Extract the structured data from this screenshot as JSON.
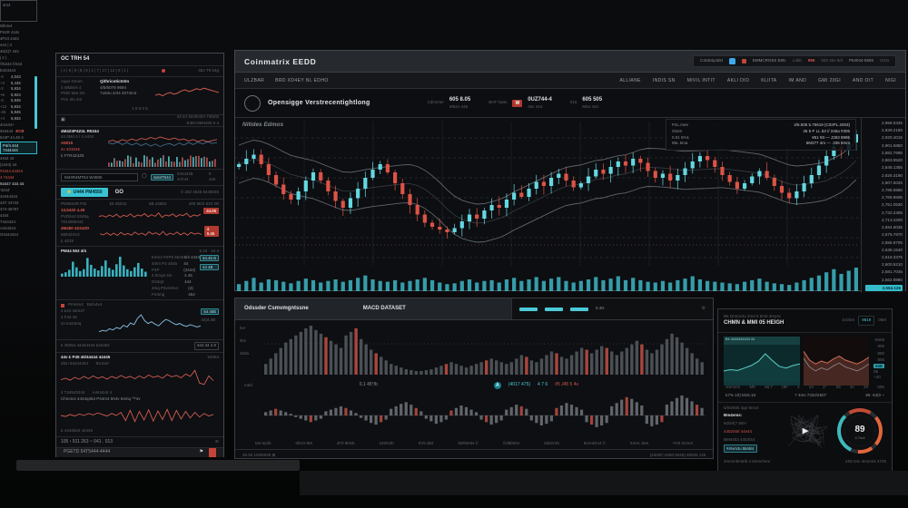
{
  "palette": {
    "bg": "#0b0c0e",
    "panel": "#0e1013",
    "cyan": "#4cc9d8",
    "red": "#d8564c",
    "up": "#64d7e0",
    "down": "#dd5346",
    "volume": "#3db6c4",
    "band": "#70757b",
    "text": "#c9cdd1"
  },
  "main_panel": {
    "title": "Coinmatrix EEDD",
    "toolbar": {
      "label": "C4U54y4dst",
      "name": "EMMCROSS E05:",
      "v1": "L4bb",
      "alert": "995",
      "v2": "b52 40v 5/d",
      "v3": "P54044-5555",
      "v4": "UGN"
    },
    "nav": {
      "left": [
        "ULZBAR",
        "BRD XD4EY NL EDHO"
      ],
      "right": [
        "ALLIANE",
        "INDIS SN",
        "MIVIL INTIT",
        "AKLI DIO",
        "KLIITA",
        "IM AND",
        "GMI 20GI",
        "AND OIT",
        "NIGI"
      ]
    },
    "symbol": {
      "name": "Opensigge Verstrecentightlong",
      "stats": [
        {
          "label": "Cdimmer",
          "value": "605 8.05",
          "sub": "M54A 445",
          "badge": ""
        },
        {
          "label": "BHF hatm",
          "value": "0UZ744-4",
          "sub": "45v 444",
          "badge": "W"
        },
        {
          "label": "015",
          "value": "605 505",
          "sub": "M54 444",
          "badge": ""
        }
      ]
    },
    "ohlc_rows": [
      [
        "P4L.mee",
        "4/5.505 5.75619 (C02PL.2003)"
      ],
      [
        "G5c9",
        "35 5-F LL 53 // 245a #305"
      ],
      [
        "0.01 5%1",
        "¥51 93 — J253 8995"
      ],
      [
        "95L 5ma",
        "6M377 4m — .335 8mm"
      ]
    ],
    "watermark": "Nitides Edmos",
    "price_scale": {
      "labels": [
        "2,958.0345",
        "2,939.2180",
        "2,920.4015",
        "2,901.5850",
        "2,882.7685",
        "2,863.9520",
        "2,845.1355",
        "2,826.3190",
        "2,807.5025",
        "2,788.6860",
        "2,769.8695",
        "2,751.0530",
        "2,732.2365",
        "2,713.4200",
        "2,694.6035",
        "2,675.7870",
        "2,656.9705",
        "2,638.1540",
        "2,619.3375",
        "2,600.5210",
        "2,581.7045",
        "2,562.8880"
      ],
      "current": "2,554.126"
    }
  },
  "mid_panel": {
    "title_left": "Odssder Csmvmgntssne",
    "title_center": "MACD DATASET",
    "inset_label": "0.4N",
    "gear": "⚙",
    "ylabels": [
      "bvr",
      "i5m",
      "4b0a"
    ],
    "metrics": {
      "left": "m6d",
      "center": "0.1 45°/b",
      "icon": "A",
      "cyan1": "(4017 475)",
      "cyan2": "4 7 6",
      "red": "#5 J45 5 4v"
    },
    "xlabels": [
      "M4 522b",
      "05V0-9M",
      "4F0 9bN5",
      "192I04b",
      "0V5 d84",
      "55RM4N ©",
      "©d9b004",
      "0d4IV45",
      "8mmDm4 ©",
      "54V4 JM4",
      "#V5 0mm4"
    ],
    "footer_left": "25.50 103/5028 ⊞",
    "footer_right": "(24000' A060 6045) 40026 119"
  },
  "right_panel": {
    "caption": "B5 Gmmc4v 4m4 5 5m5 4my4v",
    "title": "CHMN & MMI 05 HEIGH",
    "head_label": "£4v5m",
    "head_badge": "9619",
    "head_sub": "05M",
    "teal_header": "B4 4444444444 44",
    "axis_labels": [
      "-5508",
      "905",
      "890",
      "805"
    ],
    "axis_chip": "84B",
    "axis_last": "85 +40",
    "tokens1": [
      "4mm4m",
      "M5",
      "56.7",
      "(5F",
      "4",
      "44",
      "2°",
      "25",
      "4v",
      "20",
      "005"
    ],
    "tokens2": [
      "£7% 10) M15.18",
      "7 4ms 7332/2507",
      "¥6· €4(0 ~"
    ],
    "list": [
      {
        "t": "5/04/50b 4gn 5mv3",
        "c": "dim"
      },
      {
        "t": "Bm4vms:",
        "c": "white"
      },
      {
        "t": "¥20/4(7 55H",
        "c": "dim"
      },
      {
        "t": "4402/40/ 44v44",
        "c": "red"
      },
      {
        "t": "BM4403 4403/44",
        "c": "dim"
      },
      {
        "t": "#4%m3u 5546/4",
        "c": "chip"
      }
    ],
    "play": "▶",
    "footer_left": "2mmm5m5/5 4 5mm/mmr",
    "footer_right": "£05 04v 4mmm5 4725"
  },
  "left_panel": {
    "title": "OC TRH 54",
    "ruler_ticks": "| 4 | 8 | 8 | 8 | 8 | 1 | 7 | 17 | 12 | 8 | 1 |",
    "ruler_label": "4b4 T9 b4g",
    "info_left": [
      "Aqux Geum",
      "4 Wldm/s 4",
      "PMG Mat 4m",
      "Prm 4m 4m"
    ],
    "info_mid": [
      "Qithricotictstm",
      "4/5/5079 9694",
      "7u94u 4/44 4074m4"
    ],
    "info_foot": "1 5 ¥ 0 5",
    "check_right1": "44 44 4m4m4m 745m5",
    "check_right2": "E4EV4M4405 ¥ 4",
    "watch_rows": [
      {
        "t": "4M4Z4P4Z4L R5344",
        "c": "white b"
      },
      {
        "t": "44 4M4 4 / 4 4444",
        "c": "faint"
      },
      {
        "t": "A6015",
        "c": "red b"
      },
      {
        "t": "4v 40304€",
        "c": "red"
      },
      {
        "t": "£ FTR4Z4Z5",
        "c": "dim"
      }
    ],
    "search_text": "M44R4MT54 W4505",
    "search_chip": "4u54T544",
    "search_sub": "5444445 44744",
    "search_tail": "¥ 444",
    "cta_label": "⚡ U444 PM4550",
    "cta_go": "GO",
    "cta_right": "© 252 4545 5445045",
    "osc_header": [
      "PM4544R P.B.",
      "£5 45042",
      "5B 44554",
      "409 9EG 52V 00"
    ],
    "osc1_labels": [
      "13,5432 4.45",
      "PVD544 5345q",
      "7614505441"
    ],
    "osc1_badge": "44.05",
    "osc2_labels": [
      "4M450 4Z44ZD",
      "5604Z4V4",
      "£ 4Z45"
    ],
    "osc2_badge": "4 0.45",
    "ana_title": "PM44 553 4/4",
    "ana_right": "5 44 · 44 4",
    "ana_rows": [
      [
        "E4m4 P4P5 5545",
        "5/4 4444"
      ],
      [
        "4mm P4 4545 P4P",
        "44 (4444)"
      ],
      [
        "4 5mq4 4m D44q4",
        "4.45 444"
      ],
      [
        "4mq P4v44m4 P44mg",
        "(4) 454"
      ]
    ],
    "ana_chip1": "54.45 B",
    "ana_chip2": "44 4B",
    "blue_legend_a": "Pmmm4",
    "blue_legend_b": "B4m4v4",
    "blue_left": [
      "4 £44 44m47",
      "4 F44 45",
      "4v £444mq"
    ],
    "blue_chip": "54.45B",
    "blue_chip2": "44)4.4B",
    "foot": "£ 45054 44444444 £42454",
    "foot_chip": "444 44 4 ¥",
    "red_title": "44v £ P45 45/44444 44445",
    "red_title_r": "54054",
    "red_sub": [
      "45m 54444444",
      "'54.544'"
    ],
    "red_mid": [
      "4 T44542444",
      "A444444 4"
    ],
    "red_cap": "Chm4v4 4444q454 P44m4 504v 54mq ™4v",
    "red_cap2": "£ 4444544 44445",
    "num_footer": "105 ‹ 911    263 ~ 041 . 013",
    "num_icon": "≋",
    "bottom_bar": "PGETD 54T5444-4444",
    "flag": "⚑"
  },
  "rail": {
    "box": "4m4",
    "rows": [
      "Wh4v4",
      "P44R 444v",
      "4P44 4444",
      "444 | 4",
      "45(4)7 444",
      "| 4 |",
      "©5444 ©544",
      "E444444"
    ],
    "table": [
      [
        "-4",
        "4,043"
      ],
      [
        "+4",
        "5,445"
      ],
      [
        "-2",
        "5,934"
      ],
      [
        "+6",
        "5,924"
      ],
      [
        "-4",
        "5,945"
      ],
      [
        "+12",
        "5,934"
      ],
      [
        "-45",
        "5,945"
      ],
      [
        "+4",
        "5,934"
      ]
    ],
    "after": "4m444+",
    "ecb_label": "¥44444",
    "ecb": "ECB",
    "row2": "544P 44.45-4",
    "selected": "P4/4 444 7444444",
    "rows2": [
      "4444 44",
      "(4444) 44"
    ],
    "red_rows": [
      "#4444.44444",
      "4 74444"
    ],
    "header2": "54447 444 44",
    "rows3": [
      "'4444'",
      "44444444",
      "44T 44744",
      "474-45757",
      "4444",
      "T444444",
      "A444444",
      "O4444444"
    ]
  },
  "chart_data": {
    "main_candles": {
      "type": "candlestick",
      "title": "main price chart",
      "ylim": [
        0,
        100
      ],
      "closes": [
        70,
        74,
        77,
        70,
        62,
        55,
        48,
        44,
        50,
        58,
        64,
        58,
        50,
        43,
        38,
        45,
        52,
        60,
        66,
        70,
        64,
        56,
        48,
        40,
        33,
        27,
        24,
        22,
        20,
        23,
        28,
        33,
        30,
        36,
        40,
        38,
        44,
        49,
        46,
        52,
        57,
        54,
        60,
        63,
        58,
        53,
        56,
        61,
        66,
        63,
        68,
        72,
        69,
        74,
        71,
        65,
        60,
        63,
        58,
        62,
        67,
        72,
        76,
        73,
        68,
        62,
        57,
        52,
        56,
        61,
        65,
        60,
        54,
        49,
        45,
        50,
        56,
        62,
        69,
        76,
        83,
        80,
        86,
        92
      ],
      "volumes": [
        18,
        26,
        34,
        22,
        30,
        28,
        24,
        20,
        26,
        32,
        28,
        22,
        26,
        30,
        24,
        28,
        34,
        40,
        30,
        26,
        24,
        28,
        22,
        26,
        30,
        34,
        28,
        22,
        18,
        20,
        26,
        30,
        22,
        26,
        28,
        22,
        30,
        34,
        26,
        30,
        36,
        26,
        32,
        36,
        26,
        22,
        26,
        30,
        36,
        28,
        32,
        38,
        28,
        34,
        28,
        24,
        22,
        26,
        22,
        28,
        32,
        38,
        30,
        26,
        24,
        22,
        20,
        18,
        24,
        28,
        32,
        24,
        20,
        18,
        16,
        22,
        28,
        34,
        40,
        48,
        56,
        44,
        52,
        60
      ]
    },
    "hist_upper": {
      "type": "bar",
      "note": "negative values drawn red",
      "values": [
        12,
        18,
        24,
        30,
        36,
        40,
        44,
        48,
        52,
        55,
        50,
        46,
        -42,
        38,
        34,
        30,
        44,
        48,
        -52,
        40,
        34,
        28,
        -24,
        20,
        16,
        12,
        10,
        8,
        6,
        5,
        4,
        4,
        5,
        6,
        8,
        10,
        -12,
        14,
        12,
        10,
        8,
        10,
        12,
        14,
        -16,
        18,
        16,
        14,
        12,
        14,
        18,
        22,
        -20,
        16,
        14,
        18,
        22,
        26,
        -24,
        20,
        18,
        22,
        26,
        30,
        -28,
        24,
        28,
        32,
        -30,
        26,
        22,
        26,
        30,
        34,
        38,
        -34,
        28,
        24,
        28,
        34,
        40,
        46,
        42,
        36,
        30,
        24,
        18,
        14
      ]
    },
    "hist_lower": {
      "type": "bar",
      "centered": true,
      "values": [
        8,
        12,
        16,
        12,
        8,
        4,
        -4,
        -8,
        -12,
        -16,
        -12,
        -8,
        10,
        14,
        18,
        22,
        18,
        12,
        6,
        -6,
        -12,
        -18,
        -22,
        -16,
        -10,
        16,
        22,
        28,
        32,
        26,
        18,
        10,
        -8,
        -14,
        -20,
        -16,
        -10,
        12,
        18,
        24,
        20,
        14,
        8,
        -10,
        -16,
        -22,
        -18,
        -12,
        14,
        20,
        26,
        22,
        16,
        -12,
        -18,
        -24,
        -20,
        -14,
        18,
        24,
        30,
        26,
        20,
        14,
        -16,
        -22,
        -28,
        -24,
        -18,
        22,
        30,
        38,
        44,
        40,
        32,
        24,
        -20,
        -26,
        -22,
        -16,
        26,
        34,
        42,
        48,
        42,
        34,
        26,
        18
      ],
      "red_indices": [
        2,
        9,
        16,
        23,
        30,
        37,
        44,
        51,
        58,
        65,
        72,
        79,
        86
      ]
    },
    "info_spark": {
      "type": "line",
      "values": [
        40,
        44,
        38,
        46,
        50,
        44,
        48,
        56,
        60,
        54,
        58,
        64,
        60,
        66,
        62,
        58,
        54,
        50
      ]
    },
    "watch_line": {
      "type": "line",
      "values": [
        50,
        55,
        48,
        58,
        52,
        60,
        54,
        62,
        58,
        66,
        60,
        68,
        62,
        58,
        64,
        56,
        60,
        52,
        58,
        50,
        56,
        48,
        54,
        58
      ]
    },
    "watch_line_b": {
      "type": "line",
      "values": [
        45,
        40,
        48,
        38,
        46,
        36,
        44,
        34,
        42,
        32,
        40,
        30,
        38,
        42,
        34,
        44,
        36,
        46,
        38,
        48,
        40,
        50,
        42,
        46
      ]
    },
    "osc1": {
      "type": "line",
      "values": [
        50,
        54,
        46,
        58,
        48,
        62,
        44,
        56,
        50,
        64,
        46,
        58,
        52,
        66,
        48,
        60,
        50,
        70,
        44,
        58,
        52,
        64,
        48,
        60,
        54,
        68,
        46,
        58,
        52,
        62
      ]
    },
    "osc2": {
      "type": "line",
      "values": [
        54,
        48,
        60,
        46,
        58,
        44,
        62,
        48,
        56,
        46,
        64,
        50,
        58,
        46,
        66,
        52,
        60,
        48,
        68,
        46,
        58,
        50,
        64,
        48,
        60,
        46,
        62,
        52,
        58,
        50
      ]
    },
    "cyan_hist": {
      "type": "bar",
      "values": [
        10,
        14,
        22,
        48,
        30,
        18,
        24,
        60,
        38,
        26,
        20,
        34,
        52,
        28,
        22,
        40,
        64,
        36,
        24,
        18,
        30,
        44,
        26,
        16
      ]
    },
    "blue_line": {
      "type": "line",
      "values": [
        20,
        24,
        22,
        30,
        26,
        34,
        30,
        42,
        36,
        50,
        44,
        66,
        78,
        58,
        48,
        54,
        46,
        40,
        52,
        62,
        58,
        50,
        44,
        48,
        42,
        38,
        44,
        40,
        36,
        40
      ]
    },
    "red_line1": {
      "type": "line",
      "values": [
        44,
        50,
        42,
        54,
        46,
        58,
        48,
        60,
        50,
        56,
        46,
        58,
        50,
        62,
        52,
        58,
        48,
        60,
        50,
        64,
        54,
        60,
        50,
        66,
        56,
        62,
        52,
        68,
        58,
        84,
        30,
        24,
        60,
        40
      ]
    },
    "red_line2": {
      "type": "line",
      "values": [
        50,
        46,
        54,
        48,
        56,
        50,
        58,
        52,
        60,
        54,
        48,
        58,
        50,
        62,
        30,
        70,
        26,
        66,
        32,
        72,
        28,
        68,
        34,
        74,
        30,
        70,
        36,
        66,
        40,
        62,
        44,
        58,
        48,
        54
      ]
    },
    "teal_area": {
      "type": "area",
      "values": [
        35,
        38,
        36,
        42,
        48,
        58,
        76,
        60,
        46,
        42,
        48,
        52
      ]
    },
    "red_area": {
      "type": "area",
      "values": [
        70,
        52,
        44,
        50,
        46,
        54,
        60,
        52,
        48,
        44,
        50,
        58
      ]
    },
    "gauge": {
      "type": "gauge",
      "value": "89",
      "sub": "4.7m4",
      "segments": [
        {
          "from": -40,
          "to": 40,
          "color": "#e0663a"
        },
        {
          "from": 55,
          "to": 95,
          "color": "#e0663a"
        },
        {
          "from": 115,
          "to": 225,
          "color": "#3fb8ba"
        },
        {
          "from": 240,
          "to": 300,
          "color": "#c24b35"
        }
      ]
    }
  }
}
